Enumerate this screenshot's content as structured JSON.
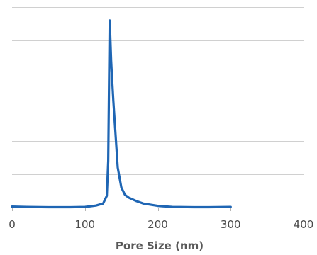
{
  "chart_data": {
    "type": "line",
    "title": "",
    "xlabel": "Pore Size (nm)",
    "ylabel": "",
    "xlim": [
      0,
      400
    ],
    "x_ticks": [
      "0",
      "100",
      "200",
      "300",
      "400"
    ],
    "ylim": [
      0,
      6
    ],
    "y_gridlines": 6,
    "y_tick_labels_visible": false,
    "grid": true,
    "legend": "none",
    "series": [
      {
        "color": "#1f66b4",
        "x": [
          0,
          20,
          50,
          80,
          100,
          115,
          125,
          130,
          132,
          133,
          134,
          135,
          136,
          137,
          139,
          142,
          145,
          150,
          155,
          160,
          170,
          180,
          200,
          220,
          250,
          270,
          300
        ],
        "y": [
          0.03,
          0.02,
          0.01,
          0.01,
          0.02,
          0.06,
          0.12,
          0.35,
          1.4,
          3.6,
          5.6,
          5.0,
          4.4,
          3.95,
          3.2,
          2.2,
          1.2,
          0.6,
          0.38,
          0.3,
          0.2,
          0.12,
          0.05,
          0.02,
          0.01,
          0.01,
          0.02
        ]
      }
    ]
  }
}
